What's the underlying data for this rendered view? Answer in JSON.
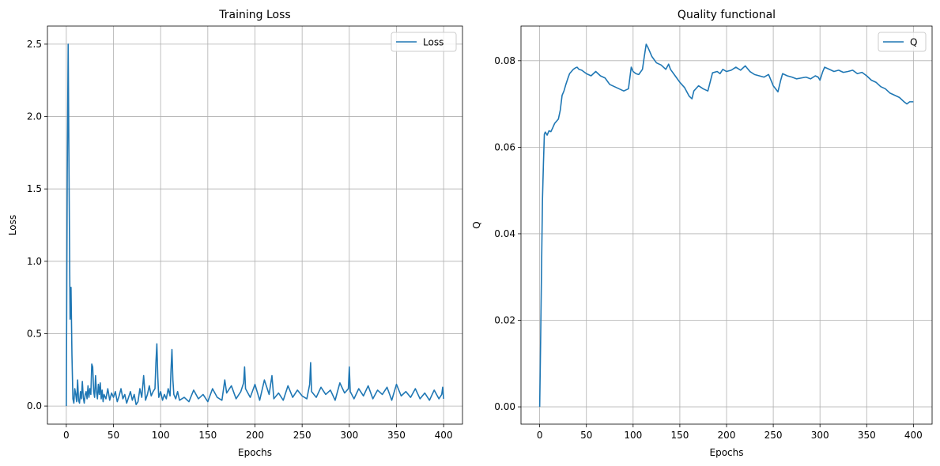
{
  "colors": {
    "series": "#1f77b4",
    "grid": "#b0b0b0",
    "axes": "#000000",
    "legend_border": "#cccccc",
    "background": "#ffffff"
  },
  "chart_data": [
    {
      "type": "line",
      "title": "Training Loss",
      "xlabel": "Epochs",
      "ylabel": "Loss",
      "xlim": [
        -20,
        420
      ],
      "ylim": [
        -0.125,
        2.625
      ],
      "xticks": [
        "0",
        "50",
        "100",
        "150",
        "200",
        "250",
        "300",
        "350",
        "400"
      ],
      "yticks": [
        "0.0",
        "0.5",
        "1.0",
        "1.5",
        "2.0",
        "2.5"
      ],
      "grid": true,
      "legend": "top-right",
      "series": [
        {
          "name": "Loss",
          "x": [
            0,
            1,
            2,
            3,
            4,
            5,
            6,
            7,
            8,
            9,
            10,
            11,
            12,
            13,
            14,
            15,
            16,
            17,
            18,
            19,
            20,
            21,
            22,
            23,
            24,
            25,
            26,
            27,
            28,
            29,
            30,
            31,
            32,
            33,
            34,
            35,
            36,
            37,
            38,
            39,
            40,
            42,
            44,
            46,
            48,
            50,
            52,
            54,
            56,
            58,
            60,
            62,
            64,
            66,
            68,
            70,
            72,
            74,
            76,
            78,
            80,
            82,
            84,
            86,
            88,
            90,
            92,
            94,
            95,
            96,
            97,
            98,
            100,
            102,
            104,
            106,
            108,
            110,
            111,
            112,
            113,
            114,
            116,
            118,
            120,
            125,
            130,
            135,
            140,
            145,
            150,
            155,
            160,
            165,
            168,
            170,
            175,
            180,
            185,
            188,
            189,
            190,
            195,
            200,
            205,
            210,
            215,
            218,
            220,
            225,
            230,
            235,
            240,
            245,
            250,
            255,
            258,
            259,
            260,
            265,
            270,
            275,
            280,
            285,
            290,
            295,
            299,
            300,
            301,
            305,
            310,
            315,
            320,
            325,
            330,
            335,
            340,
            345,
            350,
            355,
            360,
            365,
            370,
            375,
            380,
            385,
            390,
            395,
            398,
            399,
            400
          ],
          "values": [
            0.0,
            1.6,
            2.5,
            1.5,
            0.6,
            0.82,
            0.35,
            0.05,
            0.02,
            0.12,
            0.08,
            0.03,
            0.18,
            0.04,
            0.02,
            0.1,
            0.05,
            0.17,
            0.06,
            0.02,
            0.08,
            0.1,
            0.05,
            0.14,
            0.06,
            0.12,
            0.08,
            0.29,
            0.27,
            0.1,
            0.06,
            0.21,
            0.1,
            0.05,
            0.15,
            0.08,
            0.16,
            0.05,
            0.11,
            0.03,
            0.08,
            0.05,
            0.12,
            0.04,
            0.09,
            0.06,
            0.1,
            0.03,
            0.07,
            0.12,
            0.05,
            0.08,
            0.02,
            0.06,
            0.1,
            0.04,
            0.08,
            0.01,
            0.03,
            0.12,
            0.06,
            0.21,
            0.04,
            0.08,
            0.14,
            0.07,
            0.1,
            0.12,
            0.3,
            0.43,
            0.2,
            0.06,
            0.1,
            0.04,
            0.08,
            0.05,
            0.12,
            0.07,
            0.25,
            0.39,
            0.18,
            0.08,
            0.05,
            0.1,
            0.04,
            0.06,
            0.03,
            0.11,
            0.05,
            0.08,
            0.03,
            0.12,
            0.06,
            0.04,
            0.18,
            0.09,
            0.14,
            0.05,
            0.1,
            0.16,
            0.27,
            0.12,
            0.06,
            0.15,
            0.04,
            0.18,
            0.08,
            0.21,
            0.05,
            0.09,
            0.04,
            0.14,
            0.06,
            0.11,
            0.07,
            0.05,
            0.15,
            0.3,
            0.1,
            0.06,
            0.13,
            0.08,
            0.11,
            0.04,
            0.16,
            0.09,
            0.12,
            0.27,
            0.1,
            0.05,
            0.12,
            0.07,
            0.14,
            0.05,
            0.11,
            0.08,
            0.13,
            0.04,
            0.15,
            0.07,
            0.1,
            0.06,
            0.12,
            0.05,
            0.09,
            0.04,
            0.11,
            0.05,
            0.08,
            0.13,
            0.05
          ]
        }
      ]
    },
    {
      "type": "line",
      "title": "Quality functional",
      "xlabel": "Epochs",
      "ylabel": "Q",
      "xlim": [
        -20,
        420
      ],
      "ylim": [
        -0.004,
        0.088
      ],
      "xticks": [
        "0",
        "50",
        "100",
        "150",
        "200",
        "250",
        "300",
        "350",
        "400"
      ],
      "yticks": [
        "0.00",
        "0.02",
        "0.04",
        "0.06",
        "0.08"
      ],
      "grid": true,
      "legend": "top-right",
      "series": [
        {
          "name": "Q",
          "x": [
            0,
            1,
            2,
            3,
            4,
            5,
            6,
            8,
            10,
            12,
            14,
            16,
            18,
            20,
            22,
            24,
            26,
            28,
            30,
            32,
            34,
            36,
            38,
            40,
            42,
            45,
            50,
            55,
            60,
            65,
            70,
            75,
            80,
            85,
            90,
            95,
            98,
            100,
            103,
            106,
            110,
            112,
            114,
            116,
            118,
            120,
            125,
            130,
            135,
            138,
            140,
            145,
            150,
            155,
            160,
            163,
            165,
            170,
            175,
            180,
            185,
            190,
            193,
            196,
            200,
            205,
            210,
            215,
            220,
            225,
            230,
            235,
            240,
            245,
            250,
            255,
            258,
            260,
            265,
            270,
            275,
            280,
            285,
            290,
            295,
            298,
            300,
            303,
            305,
            310,
            315,
            320,
            325,
            330,
            335,
            340,
            345,
            350,
            355,
            360,
            365,
            370,
            375,
            380,
            385,
            390,
            393,
            396,
            400
          ],
          "values": [
            0.0,
            0.015,
            0.032,
            0.048,
            0.056,
            0.063,
            0.0635,
            0.0628,
            0.0638,
            0.0636,
            0.0645,
            0.0655,
            0.066,
            0.0665,
            0.0685,
            0.072,
            0.073,
            0.0745,
            0.0758,
            0.077,
            0.0775,
            0.078,
            0.0783,
            0.0785,
            0.078,
            0.0778,
            0.077,
            0.0765,
            0.0775,
            0.0765,
            0.076,
            0.0745,
            0.074,
            0.0735,
            0.073,
            0.0735,
            0.0785,
            0.0775,
            0.077,
            0.0768,
            0.078,
            0.081,
            0.0838,
            0.083,
            0.082,
            0.081,
            0.0795,
            0.079,
            0.078,
            0.0792,
            0.078,
            0.0765,
            0.075,
            0.0738,
            0.0718,
            0.0712,
            0.073,
            0.0742,
            0.0735,
            0.073,
            0.0772,
            0.0775,
            0.077,
            0.078,
            0.0775,
            0.0778,
            0.0785,
            0.0778,
            0.0788,
            0.0775,
            0.0768,
            0.0765,
            0.0762,
            0.0768,
            0.0742,
            0.0728,
            0.0755,
            0.077,
            0.0765,
            0.0762,
            0.0758,
            0.076,
            0.0762,
            0.0758,
            0.0765,
            0.0762,
            0.0755,
            0.0775,
            0.0785,
            0.078,
            0.0775,
            0.0778,
            0.0773,
            0.0775,
            0.0778,
            0.077,
            0.0773,
            0.0765,
            0.0755,
            0.075,
            0.074,
            0.0735,
            0.0725,
            0.072,
            0.0715,
            0.0705,
            0.07,
            0.0705,
            0.0705
          ]
        }
      ]
    }
  ]
}
